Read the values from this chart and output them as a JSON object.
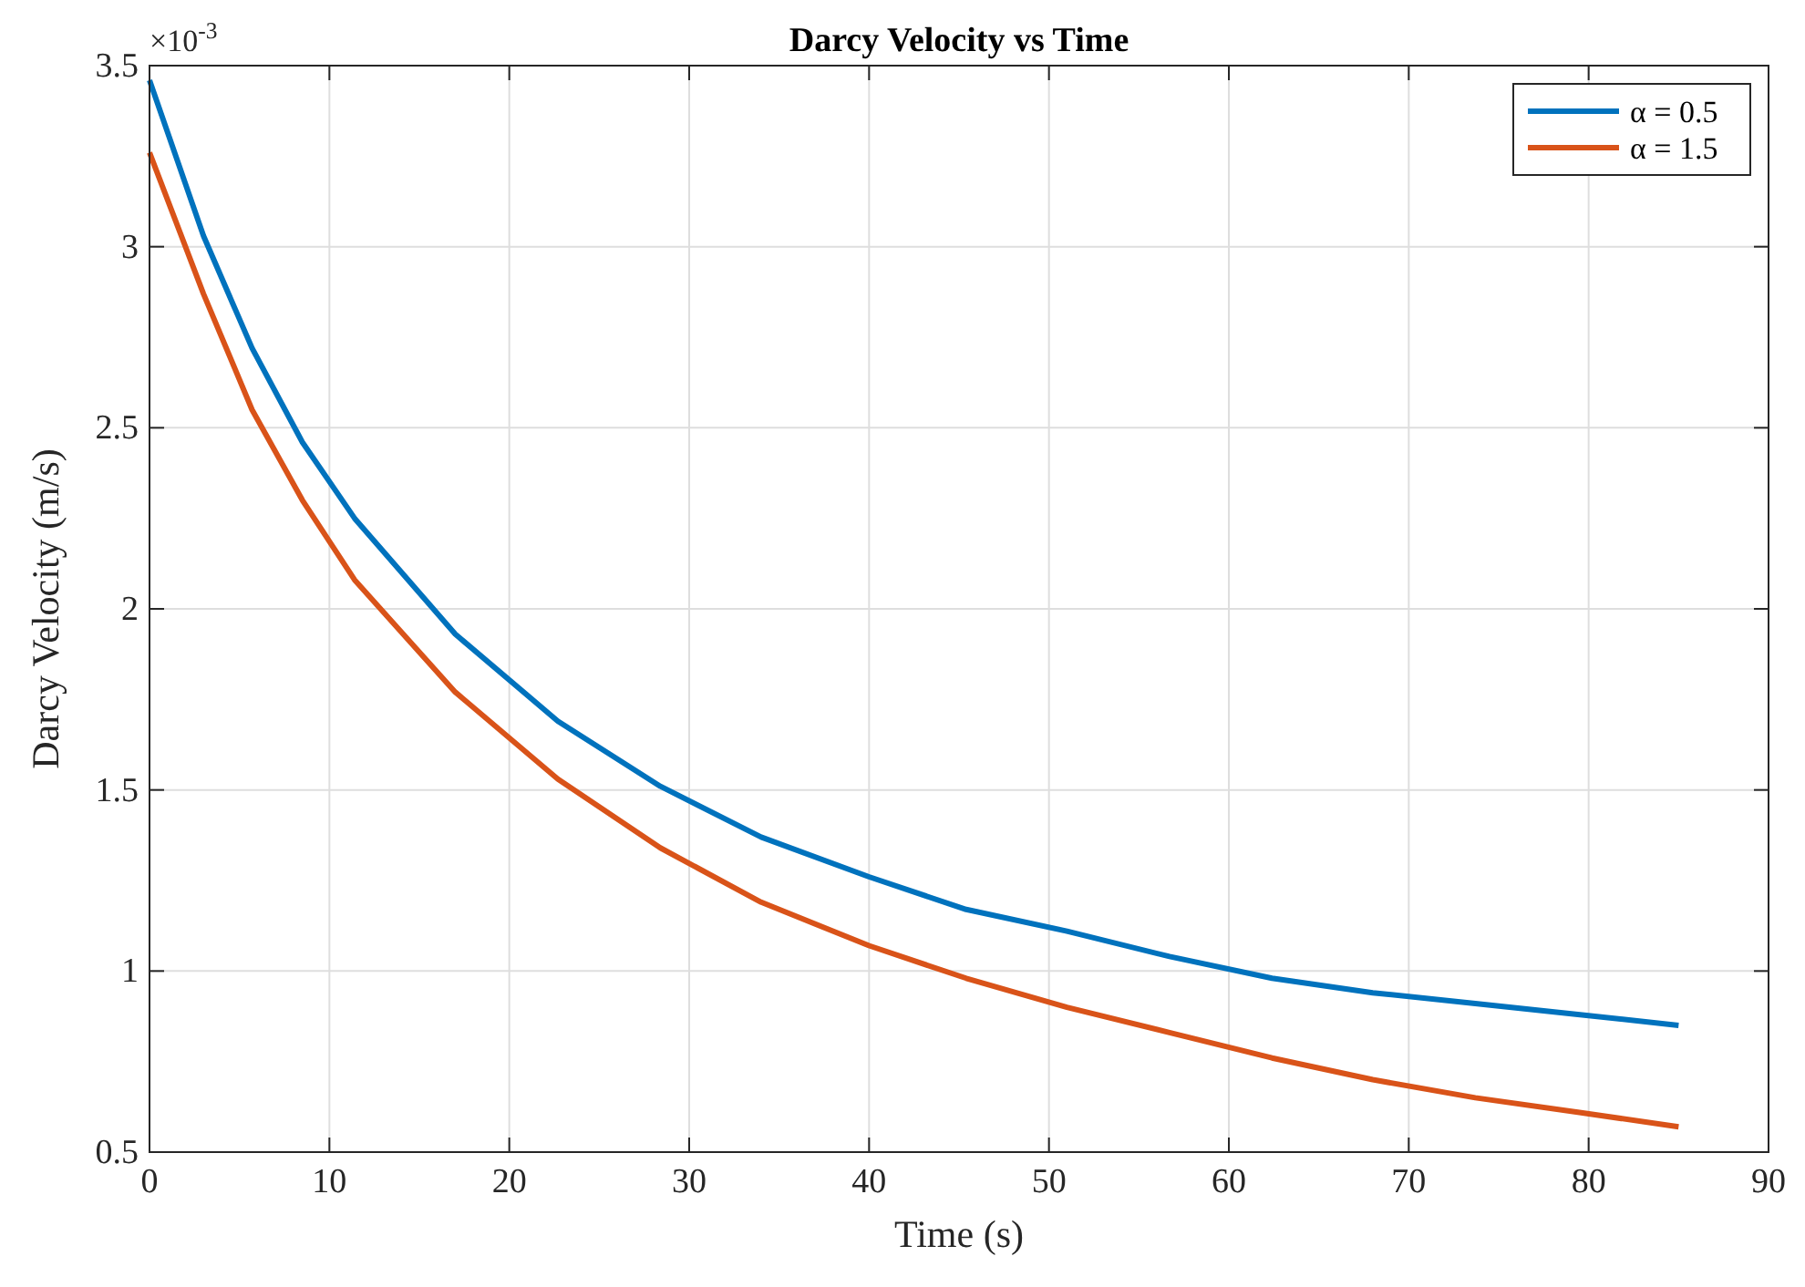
{
  "chart_data": {
    "type": "line",
    "title": "Darcy Velocity vs Time",
    "xlabel": "Time (s)",
    "ylabel": "Darcy Velocity (m/s)",
    "annotations": [
      "×10$^{-3}$"
    ],
    "x": [
      0,
      3,
      5.7,
      8.5,
      11.4,
      17,
      22.7,
      28.4,
      34,
      40,
      45.4,
      51,
      56.7,
      62.4,
      68,
      73.7,
      79.4,
      85
    ],
    "series": [
      {
        "name": "α = 0.5",
        "color": "#0072bd",
        "values": [
          3.46,
          3.03,
          2.72,
          2.46,
          2.25,
          1.93,
          1.69,
          1.51,
          1.37,
          1.26,
          1.17,
          1.11,
          1.04,
          0.98,
          0.94,
          0.91,
          0.88,
          0.85
        ]
      },
      {
        "name": "α = 1.5",
        "color": "#d95319",
        "values": [
          3.26,
          2.87,
          2.55,
          2.3,
          2.08,
          1.77,
          1.53,
          1.34,
          1.19,
          1.07,
          0.98,
          0.9,
          0.83,
          0.76,
          0.7,
          0.65,
          0.61,
          0.57
        ]
      }
    ],
    "xlim": [
      0,
      90
    ],
    "xticks": [
      0,
      10,
      20,
      30,
      40,
      50,
      60,
      70,
      80,
      90
    ],
    "ylim": [
      0.5,
      3.5
    ],
    "yticks": [
      0.5,
      1,
      1.5,
      2,
      2.5,
      3,
      3.5
    ],
    "grid": true,
    "legend": "top right",
    "line_style": "solid"
  }
}
